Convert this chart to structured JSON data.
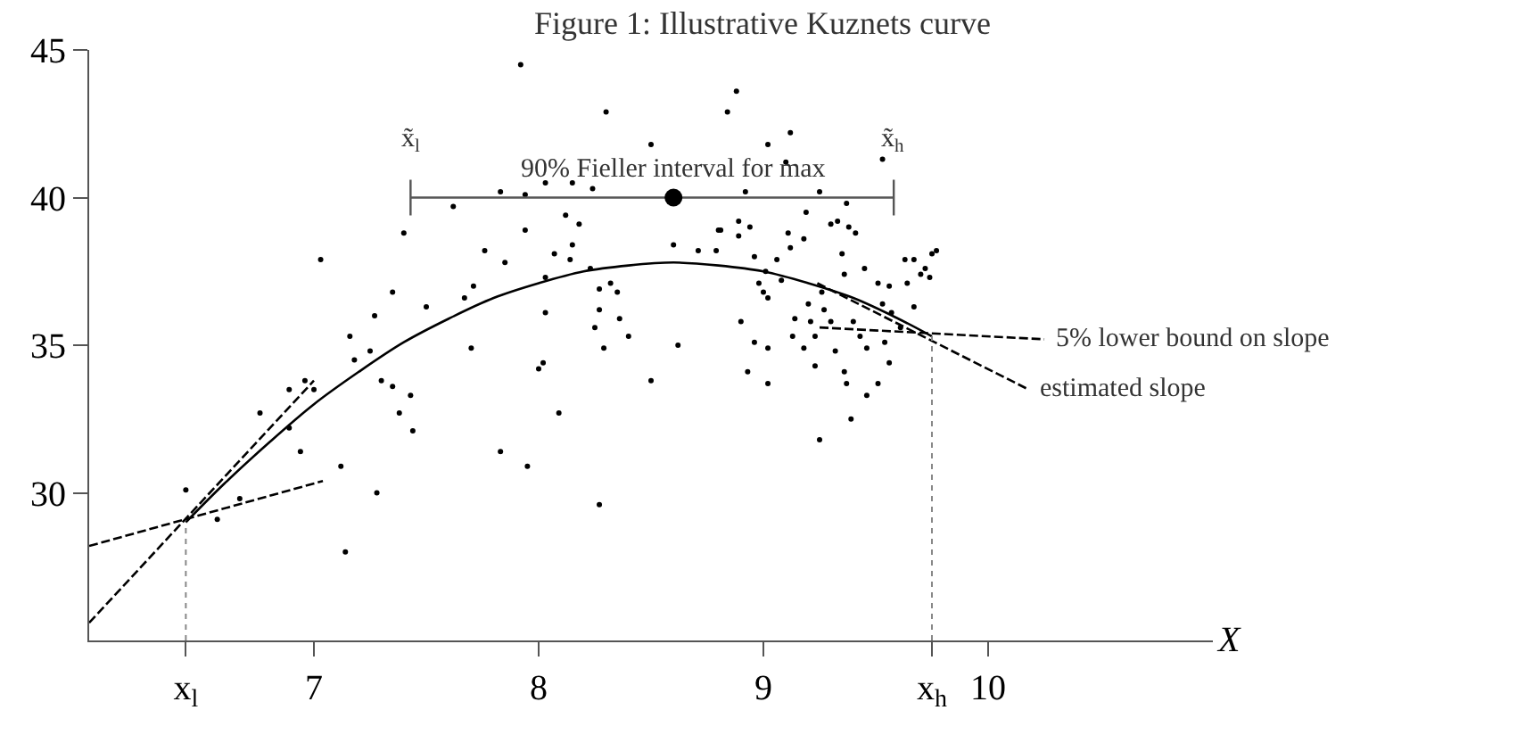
{
  "chart_data": {
    "type": "scatter",
    "title": "Figure 1: Illustrative Kuznets curve",
    "xlabel": "X",
    "xlim": [
      6,
      11
    ],
    "ylim": [
      25,
      45
    ],
    "xticks": [
      {
        "value": 6.43,
        "label": "x$_{l}$"
      },
      7,
      8,
      9,
      {
        "value": 9.75,
        "label": "x$_{h}$"
      },
      10
    ],
    "yticks": [
      30,
      35,
      40,
      45
    ],
    "series": [
      {
        "color": "#000000",
        "x": [
          6.43,
          6.57,
          6.67,
          6.76,
          6.89,
          6.96,
          7.0,
          6.89,
          6.94,
          7.03,
          7.12,
          7.14,
          7.16,
          7.18,
          7.25,
          7.27,
          7.28,
          7.3,
          7.35,
          7.35,
          7.38,
          7.4,
          7.43,
          7.44,
          7.5,
          7.62,
          7.67,
          7.7,
          7.71,
          7.76,
          7.83,
          7.83,
          7.85,
          7.92,
          7.94,
          7.94,
          7.95,
          8.0,
          8.02,
          8.03,
          8.03,
          8.03,
          8.07,
          8.09,
          8.12,
          8.14,
          8.15,
          8.15,
          8.18,
          8.23,
          8.24,
          8.25,
          8.27,
          8.27,
          8.27,
          8.29,
          8.3,
          8.32,
          8.35,
          8.36,
          8.4,
          8.5,
          8.5,
          8.6,
          8.62,
          8.71,
          8.79,
          8.8,
          8.84,
          8.88,
          8.89,
          8.9,
          9.12,
          9.02,
          9.1,
          8.92,
          9.25,
          9.37,
          9.19,
          8.81,
          8.94,
          8.89,
          8.96,
          9.11,
          9.18,
          9.3,
          9.33,
          9.38,
          9.41,
          9.12,
          9.06,
          9.01,
          8.98,
          9.0,
          9.02,
          8.96,
          9.02,
          8.93,
          9.02,
          9.08,
          9.14,
          9.13,
          9.18,
          9.2,
          9.21,
          9.23,
          9.23,
          9.25,
          9.26,
          9.27,
          9.3,
          9.32,
          9.35,
          9.36,
          9.36,
          9.37,
          9.39,
          9.4,
          9.43,
          9.45,
          9.46,
          9.46,
          9.51,
          9.53,
          9.51,
          9.54,
          9.56,
          9.57,
          9.53,
          9.63,
          9.64,
          9.67,
          9.67,
          9.7,
          9.72,
          9.74,
          9.75,
          9.77,
          9.56,
          9.61
        ],
        "values": [
          30.1,
          29.1,
          29.8,
          32.7,
          33.5,
          33.8,
          33.5,
          32.2,
          31.4,
          37.9,
          30.9,
          28.0,
          35.3,
          34.5,
          34.8,
          36.0,
          30.0,
          33.8,
          36.8,
          33.6,
          32.7,
          38.8,
          33.3,
          32.1,
          36.3,
          39.7,
          36.6,
          34.9,
          37.0,
          38.2,
          31.4,
          40.2,
          37.8,
          44.5,
          40.1,
          38.9,
          30.9,
          34.2,
          34.4,
          37.3,
          36.1,
          40.5,
          38.1,
          32.7,
          39.4,
          37.9,
          38.4,
          40.5,
          39.1,
          37.6,
          40.3,
          35.6,
          29.6,
          36.9,
          36.2,
          34.9,
          42.9,
          37.1,
          36.8,
          35.9,
          35.3,
          33.8,
          41.8,
          38.4,
          35.0,
          38.2,
          38.2,
          38.9,
          42.9,
          43.6,
          39.2,
          35.8,
          42.2,
          41.8,
          41.2,
          40.2,
          40.2,
          39.8,
          39.5,
          38.9,
          39.0,
          38.7,
          38.0,
          38.8,
          38.6,
          39.1,
          39.2,
          39.0,
          38.8,
          38.3,
          37.9,
          37.5,
          37.1,
          36.8,
          36.6,
          35.1,
          34.9,
          34.1,
          33.7,
          37.2,
          35.9,
          35.3,
          34.9,
          36.4,
          35.8,
          35.3,
          34.3,
          31.8,
          36.8,
          36.2,
          35.8,
          34.8,
          38.1,
          37.4,
          34.1,
          33.7,
          32.5,
          35.8,
          35.3,
          37.6,
          33.3,
          34.9,
          37.1,
          36.4,
          33.7,
          35.1,
          34.4,
          36.1,
          41.3,
          37.9,
          37.1,
          37.9,
          36.3,
          37.4,
          37.6,
          37.3,
          38.1,
          38.2,
          37.0,
          35.6
        ]
      },
      {
        "type": "line",
        "line_style": "solid",
        "color": "#000000",
        "x": [
          6.43,
          6.6,
          6.8,
          7.0,
          7.2,
          7.4,
          7.6,
          7.8,
          8.0,
          8.2,
          8.4,
          8.6,
          8.8,
          9.0,
          9.2,
          9.4,
          9.6,
          9.75
        ],
        "values": [
          29.0,
          30.3,
          31.7,
          33.0,
          34.1,
          35.1,
          35.9,
          36.6,
          37.1,
          37.5,
          37.7,
          37.8,
          37.7,
          37.5,
          37.1,
          36.6,
          35.9,
          35.3
        ]
      },
      {
        "type": "line",
        "line_style": "dashed",
        "color": "#000000",
        "x": [
          6.0,
          7.0
        ],
        "values": [
          25.6,
          33.8
        ]
      },
      {
        "type": "line",
        "line_style": "dashed",
        "color": "#000000",
        "x": [
          6.0,
          7.04
        ],
        "values": [
          28.2,
          30.4
        ]
      },
      {
        "type": "line",
        "line_style": "dashed",
        "color": "#000000",
        "x": [
          9.24,
          10.18
        ],
        "values": [
          37.1,
          33.5
        ]
      },
      {
        "type": "line",
        "line_style": "dashed",
        "color": "#000000",
        "x": [
          9.25,
          10.25
        ],
        "values": [
          35.6,
          35.2
        ]
      },
      {
        "type": "line",
        "line_style": "dotted",
        "color": "#888888",
        "x": [
          6.43,
          6.43
        ],
        "values": [
          25,
          29.0
        ]
      },
      {
        "type": "line",
        "line_style": "dotted",
        "color": "#888888",
        "x": [
          9.75,
          9.75
        ],
        "values": [
          25,
          35.3
        ]
      },
      {
        "type": "scatter",
        "color": "#000000",
        "x": [
          8.6
        ],
        "values": [
          40.0
        ],
        "xerrors": [
          [
            7.43,
            9.58
          ]
        ]
      }
    ],
    "annotations": [
      {
        "text": "90% Fieller interval for max",
        "x": 8.6,
        "y": 40.0
      },
      {
        "text": "x̃$_{l}$",
        "x": 7.43,
        "y": 40.0
      },
      {
        "text": "x̃$_{h}$",
        "x": 9.58,
        "y": 40.0
      },
      {
        "text": "5% lower bound on slope",
        "x": 10.25,
        "y": 35.2
      },
      {
        "text": "estimated slope",
        "x": 10.18,
        "y": 33.5
      }
    ]
  }
}
